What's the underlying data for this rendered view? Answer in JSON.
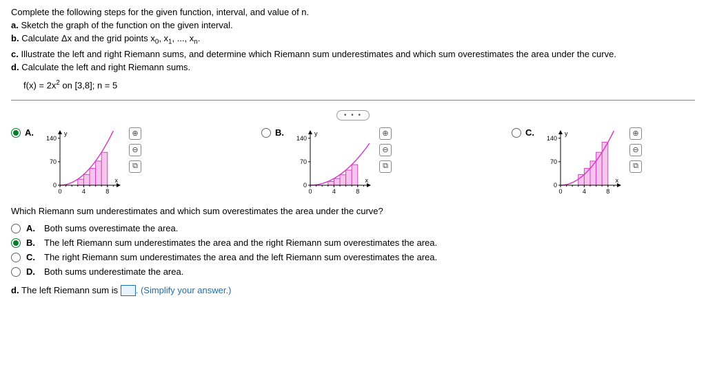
{
  "intro": "Complete the following steps for the given function, interval, and value of n.",
  "steps": {
    "a": "Sketch the graph of the function on the given interval.",
    "b_prefix": "Calculate Δx and the grid points x",
    "b_mid1": ", x",
    "b_mid2": ", ..., x",
    "b_suffix": ".",
    "c": "Illustrate the left and right Riemann sums, and determine which Riemann sum underestimates and which sum overestimates the area under the curve.",
    "d": "Calculate the left and right Riemann sums."
  },
  "fn": {
    "prefix": "f(x) = 2x",
    "suffix": " on [3,8]; n = 5"
  },
  "pill": "• • •",
  "graph_labels": {
    "a": "A.",
    "b": "B.",
    "c": "C."
  },
  "q2": "Which Riemann sum underestimates and which sum overestimates the area under the curve?",
  "answers": {
    "a": {
      "letter": "A.",
      "text": "Both sums overestimate the area."
    },
    "b": {
      "letter": "B.",
      "text": "The left Riemann sum underestimates the area and the right Riemann sum overestimates the area."
    },
    "c": {
      "letter": "C.",
      "text": "The right Riemann sum underestimates the area and the left Riemann sum overestimates the area."
    },
    "d": {
      "letter": "D.",
      "text": "Both sums underestimate the area."
    }
  },
  "partd": {
    "label": "d.",
    "before": "The left Riemann sum is ",
    "after": ". (Simplify your answer.)"
  },
  "chart": {
    "type": "riemann",
    "width": 120,
    "height": 100,
    "x_axis": {
      "min": 0,
      "max": 10,
      "ticks": [
        0,
        4,
        8
      ],
      "label": "x"
    },
    "y_axis": {
      "min": 0,
      "max": 160,
      "ticks": [
        0,
        70,
        140
      ],
      "label": "y"
    },
    "curve_color": "#d63fc4",
    "bar_fill": "#f7c4ee",
    "bar_stroke": "#d63fc4",
    "axis_color": "#000000",
    "tick_fontsize": 9,
    "interval": [
      3,
      8
    ],
    "n": 5,
    "variants": {
      "A": {
        "fn_scale": 2.0,
        "mode": "left"
      },
      "B": {
        "fn_scale": 1.25,
        "mode": "left"
      },
      "C": {
        "fn_scale": 2.0,
        "mode": "right"
      }
    }
  },
  "tools": {
    "zoom_in": "⊕",
    "zoom_out": "⊖",
    "expand": "⧉"
  }
}
